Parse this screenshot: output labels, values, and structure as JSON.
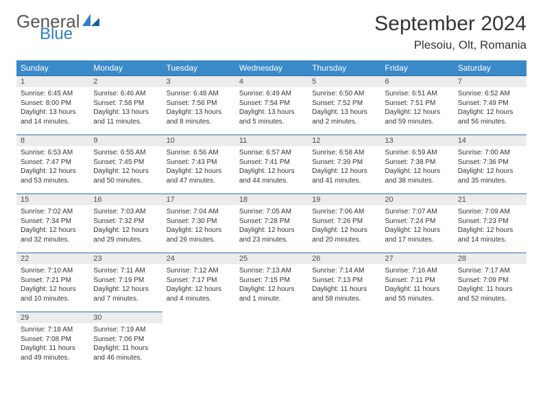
{
  "logo": {
    "text1": "General",
    "text2": "Blue"
  },
  "title": "September 2024",
  "location": "Plesoiu, Olt, Romania",
  "colors": {
    "header_bg": "#3a89c9",
    "header_text": "#ffffff",
    "daynum_bg": "#ececec",
    "daynum_border": "#2f6fa5",
    "logo_blue": "#2f7fc1"
  },
  "day_headers": [
    "Sunday",
    "Monday",
    "Tuesday",
    "Wednesday",
    "Thursday",
    "Friday",
    "Saturday"
  ],
  "weeks": [
    [
      {
        "n": "1",
        "sr": "6:45 AM",
        "ss": "8:00 PM",
        "dl": "13 hours and 14 minutes."
      },
      {
        "n": "2",
        "sr": "6:46 AM",
        "ss": "7:58 PM",
        "dl": "13 hours and 11 minutes."
      },
      {
        "n": "3",
        "sr": "6:48 AM",
        "ss": "7:56 PM",
        "dl": "13 hours and 8 minutes."
      },
      {
        "n": "4",
        "sr": "6:49 AM",
        "ss": "7:54 PM",
        "dl": "13 hours and 5 minutes."
      },
      {
        "n": "5",
        "sr": "6:50 AM",
        "ss": "7:52 PM",
        "dl": "13 hours and 2 minutes."
      },
      {
        "n": "6",
        "sr": "6:51 AM",
        "ss": "7:51 PM",
        "dl": "12 hours and 59 minutes."
      },
      {
        "n": "7",
        "sr": "6:52 AM",
        "ss": "7:49 PM",
        "dl": "12 hours and 56 minutes."
      }
    ],
    [
      {
        "n": "8",
        "sr": "6:53 AM",
        "ss": "7:47 PM",
        "dl": "12 hours and 53 minutes."
      },
      {
        "n": "9",
        "sr": "6:55 AM",
        "ss": "7:45 PM",
        "dl": "12 hours and 50 minutes."
      },
      {
        "n": "10",
        "sr": "6:56 AM",
        "ss": "7:43 PM",
        "dl": "12 hours and 47 minutes."
      },
      {
        "n": "11",
        "sr": "6:57 AM",
        "ss": "7:41 PM",
        "dl": "12 hours and 44 minutes."
      },
      {
        "n": "12",
        "sr": "6:58 AM",
        "ss": "7:39 PM",
        "dl": "12 hours and 41 minutes."
      },
      {
        "n": "13",
        "sr": "6:59 AM",
        "ss": "7:38 PM",
        "dl": "12 hours and 38 minutes."
      },
      {
        "n": "14",
        "sr": "7:00 AM",
        "ss": "7:36 PM",
        "dl": "12 hours and 35 minutes."
      }
    ],
    [
      {
        "n": "15",
        "sr": "7:02 AM",
        "ss": "7:34 PM",
        "dl": "12 hours and 32 minutes."
      },
      {
        "n": "16",
        "sr": "7:03 AM",
        "ss": "7:32 PM",
        "dl": "12 hours and 29 minutes."
      },
      {
        "n": "17",
        "sr": "7:04 AM",
        "ss": "7:30 PM",
        "dl": "12 hours and 26 minutes."
      },
      {
        "n": "18",
        "sr": "7:05 AM",
        "ss": "7:28 PM",
        "dl": "12 hours and 23 minutes."
      },
      {
        "n": "19",
        "sr": "7:06 AM",
        "ss": "7:26 PM",
        "dl": "12 hours and 20 minutes."
      },
      {
        "n": "20",
        "sr": "7:07 AM",
        "ss": "7:24 PM",
        "dl": "12 hours and 17 minutes."
      },
      {
        "n": "21",
        "sr": "7:09 AM",
        "ss": "7:23 PM",
        "dl": "12 hours and 14 minutes."
      }
    ],
    [
      {
        "n": "22",
        "sr": "7:10 AM",
        "ss": "7:21 PM",
        "dl": "12 hours and 10 minutes."
      },
      {
        "n": "23",
        "sr": "7:11 AM",
        "ss": "7:19 PM",
        "dl": "12 hours and 7 minutes."
      },
      {
        "n": "24",
        "sr": "7:12 AM",
        "ss": "7:17 PM",
        "dl": "12 hours and 4 minutes."
      },
      {
        "n": "25",
        "sr": "7:13 AM",
        "ss": "7:15 PM",
        "dl": "12 hours and 1 minute."
      },
      {
        "n": "26",
        "sr": "7:14 AM",
        "ss": "7:13 PM",
        "dl": "11 hours and 58 minutes."
      },
      {
        "n": "27",
        "sr": "7:16 AM",
        "ss": "7:11 PM",
        "dl": "11 hours and 55 minutes."
      },
      {
        "n": "28",
        "sr": "7:17 AM",
        "ss": "7:09 PM",
        "dl": "11 hours and 52 minutes."
      }
    ],
    [
      {
        "n": "29",
        "sr": "7:18 AM",
        "ss": "7:08 PM",
        "dl": "11 hours and 49 minutes."
      },
      {
        "n": "30",
        "sr": "7:19 AM",
        "ss": "7:06 PM",
        "dl": "11 hours and 46 minutes."
      },
      null,
      null,
      null,
      null,
      null
    ]
  ],
  "labels": {
    "sunrise": "Sunrise:",
    "sunset": "Sunset:",
    "daylight": "Daylight:"
  }
}
